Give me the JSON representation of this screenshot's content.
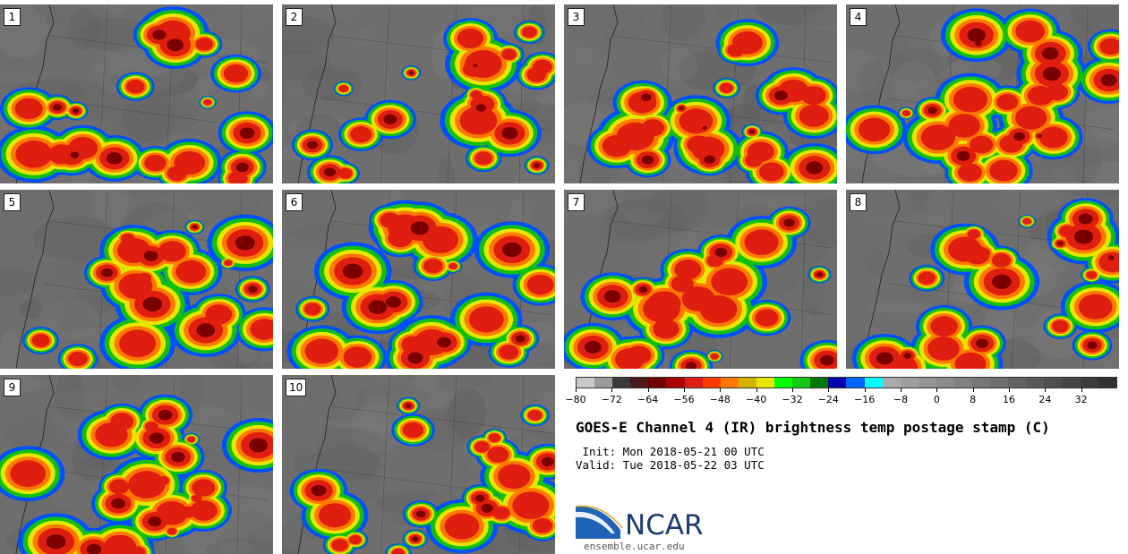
{
  "panels": [
    "1",
    "2",
    "3",
    "4",
    "5",
    "6",
    "7",
    "8",
    "9",
    "10"
  ],
  "colorbar": {
    "colors": [
      "#c8c8c8",
      "#9a9a9a",
      "#3a3a3a",
      "#4a1a1a",
      "#6e0000",
      "#a80000",
      "#dc1e14",
      "#ff3c00",
      "#ff7800",
      "#d2b400",
      "#e6e600",
      "#00ff00",
      "#14c814",
      "#007800",
      "#0000aa",
      "#0064ff",
      "#00ffff",
      "#aaaaaa",
      "#9f9f9f",
      "#959595",
      "#8b8b8b",
      "#818181",
      "#777777",
      "#6d6d6d",
      "#636363",
      "#595959",
      "#4f4f4f",
      "#454545",
      "#3b3b3b",
      "#313131"
    ],
    "min": -80,
    "max": 40,
    "tick_labels": [
      "−80",
      "−72",
      "−64",
      "−56",
      "−48",
      "−40",
      "−32",
      "−24",
      "−16",
      "−8",
      "0",
      "8",
      "16",
      "24",
      "32"
    ],
    "tick_values": [
      -80,
      -72,
      -64,
      -56,
      -48,
      -40,
      -32,
      -24,
      -16,
      -8,
      0,
      8,
      16,
      24,
      32
    ]
  },
  "title": "GOES-E Channel 4 (IR) brightness temp postage stamp (C)",
  "init_line": " Init: Mon 2018-05-21 00 UTC",
  "valid_line": "Valid: Tue 2018-05-22 03 UTC",
  "logo_text": "NCAR",
  "website": "ensemble.ucar.edu",
  "colors": {
    "storm_core": "#7a0000",
    "storm_red": "#e01e10",
    "storm_orange": "#ff7800",
    "storm_yellow": "#e6e600",
    "storm_green": "#10c010",
    "storm_blue": "#0050ff",
    "background_gray": "#6e6e6e"
  }
}
